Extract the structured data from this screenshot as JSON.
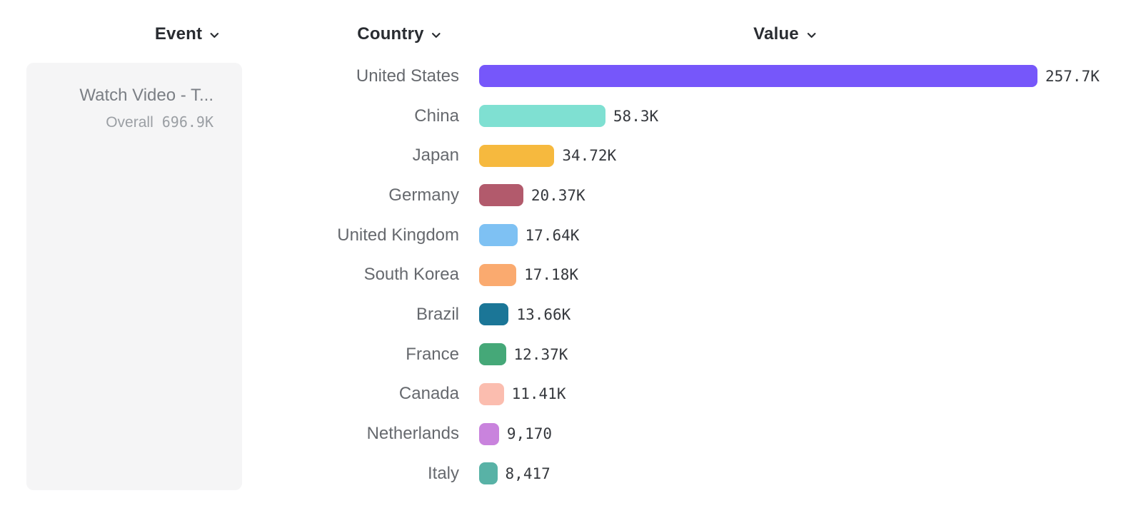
{
  "headers": {
    "event": "Event",
    "country": "Country",
    "value": "Value"
  },
  "event_card": {
    "name": "Watch Video - T...",
    "overall_label": "Overall",
    "overall_value": "696.9K"
  },
  "chart_data": {
    "type": "bar",
    "orientation": "horizontal",
    "categories": [
      "United States",
      "China",
      "Japan",
      "Germany",
      "United Kingdom",
      "South Korea",
      "Brazil",
      "France",
      "Canada",
      "Netherlands",
      "Italy"
    ],
    "values": [
      257700,
      58300,
      34720,
      20370,
      17640,
      17180,
      13660,
      12370,
      11410,
      9170,
      8417
    ],
    "value_labels": [
      "257.7K",
      "58.3K",
      "34.72K",
      "20.37K",
      "17.64K",
      "17.18K",
      "13.66K",
      "12.37K",
      "11.41K",
      "9,170",
      "8,417"
    ],
    "bar_colors": [
      "#7657fa",
      "#7fe0d2",
      "#f6b93e",
      "#b25a6c",
      "#7ec1f3",
      "#faaa6f",
      "#1b7697",
      "#45a878",
      "#fbbdaf",
      "#c983dd",
      "#58b2a6"
    ],
    "xlim": [
      0,
      257700
    ],
    "grid": false,
    "legend": false
  },
  "colors": {
    "header_text": "#292c31",
    "country_label": "#66696e",
    "value_text": "#35383d",
    "card_background": "#f5f5f6",
    "muted_text": "#9b9fa4"
  }
}
